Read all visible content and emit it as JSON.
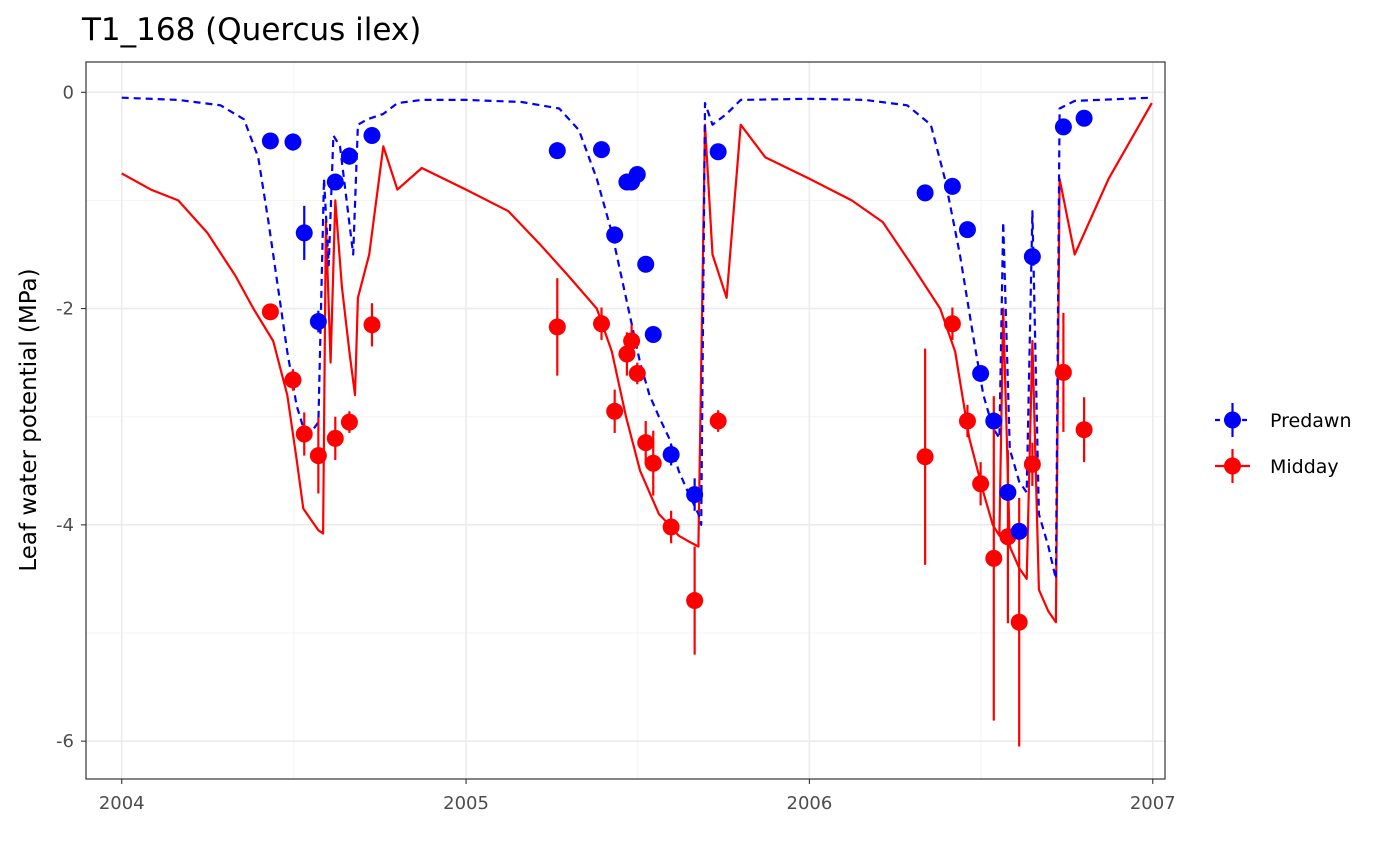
{
  "chart_data": {
    "type": "line",
    "title": "T1_168 (Quercus ilex)",
    "xlabel": "",
    "ylabel": "Leaf water potential (MPa)",
    "xlim": [
      "2003-11-24",
      "2007-01-14"
    ],
    "ylim": [
      -6.35,
      0.28
    ],
    "x_ticks": [
      "2004-01-01",
      "2005-01-01",
      "2006-01-01",
      "2007-01-01"
    ],
    "x_tick_labels": [
      "2004",
      "2005",
      "2006",
      "2007"
    ],
    "y_ticks": [
      0,
      -2,
      -4,
      -6
    ],
    "y_tick_labels": [
      "0",
      "-2",
      "-4",
      "-6"
    ],
    "grid": true,
    "legend_position": "right",
    "series": [
      {
        "name": "Predawn",
        "color": "#0000FF",
        "line_style": "dashed",
        "simulated": [
          [
            "2004-01-01",
            -0.05
          ],
          [
            "2004-03-01",
            -0.07
          ],
          [
            "2004-04-15",
            -0.12
          ],
          [
            "2004-05-10",
            -0.25
          ],
          [
            "2004-05-25",
            -0.6
          ],
          [
            "2004-06-05",
            -1.2
          ],
          [
            "2004-06-15",
            -1.8
          ],
          [
            "2004-06-25",
            -2.4
          ],
          [
            "2004-07-05",
            -2.9
          ],
          [
            "2004-07-12",
            -3.1
          ],
          [
            "2004-07-20",
            -3.15
          ],
          [
            "2004-07-28",
            -3.05
          ],
          [
            "2004-08-03",
            -0.8
          ],
          [
            "2004-08-08",
            -1.6
          ],
          [
            "2004-08-13",
            -0.4
          ],
          [
            "2004-08-20",
            -0.5
          ],
          [
            "2004-08-27",
            -1.0
          ],
          [
            "2004-09-03",
            -1.5
          ],
          [
            "2004-09-08",
            -0.3
          ],
          [
            "2004-09-18",
            -0.25
          ],
          [
            "2004-10-05",
            -0.2
          ],
          [
            "2004-10-20",
            -0.1
          ],
          [
            "2004-11-15",
            -0.07
          ],
          [
            "2005-01-01",
            -0.07
          ],
          [
            "2005-03-01",
            -0.09
          ],
          [
            "2005-04-10",
            -0.15
          ],
          [
            "2005-05-01",
            -0.35
          ],
          [
            "2005-05-20",
            -0.8
          ],
          [
            "2005-06-05",
            -1.3
          ],
          [
            "2005-06-20",
            -1.9
          ],
          [
            "2005-07-05",
            -2.5
          ],
          [
            "2005-07-15",
            -2.8
          ],
          [
            "2005-07-25",
            -3.0
          ],
          [
            "2005-08-05",
            -3.2
          ],
          [
            "2005-08-15",
            -3.5
          ],
          [
            "2005-08-25",
            -3.7
          ],
          [
            "2005-09-05",
            -3.9
          ],
          [
            "2005-09-08",
            -4.0
          ],
          [
            "2005-09-12",
            -0.1
          ],
          [
            "2005-09-20",
            -0.3
          ],
          [
            "2005-10-05",
            -0.2
          ],
          [
            "2005-10-20",
            -0.07
          ],
          [
            "2006-01-01",
            -0.06
          ],
          [
            "2006-03-01",
            -0.07
          ],
          [
            "2006-04-15",
            -0.12
          ],
          [
            "2006-05-10",
            -0.3
          ],
          [
            "2006-05-25",
            -0.8
          ],
          [
            "2006-06-10",
            -1.5
          ],
          [
            "2006-06-25",
            -2.3
          ],
          [
            "2006-07-05",
            -2.8
          ],
          [
            "2006-07-15",
            -3.1
          ],
          [
            "2006-07-22",
            -3.2
          ],
          [
            "2006-07-26",
            -1.2
          ],
          [
            "2006-08-02",
            -3.3
          ],
          [
            "2006-08-12",
            -3.6
          ],
          [
            "2006-08-20",
            -3.7
          ],
          [
            "2006-08-26",
            -1.1
          ],
          [
            "2006-09-02",
            -3.9
          ],
          [
            "2006-09-12",
            -4.2
          ],
          [
            "2006-09-20",
            -4.5
          ],
          [
            "2006-09-24",
            -0.15
          ],
          [
            "2006-10-10",
            -0.08
          ],
          [
            "2006-12-31",
            -0.05
          ]
        ],
        "observations": [
          [
            "2004-06-07",
            -0.45,
            0.05
          ],
          [
            "2004-07-01",
            -0.46,
            0.08
          ],
          [
            "2004-07-13",
            -1.3,
            0.25
          ],
          [
            "2004-07-28",
            -2.12,
            0.1
          ],
          [
            "2004-08-15",
            -0.83,
            0.06
          ],
          [
            "2004-08-30",
            -0.59,
            0.08
          ],
          [
            "2004-09-23",
            -0.4,
            0.05
          ],
          [
            "2005-04-08",
            -0.54,
            0.05
          ],
          [
            "2005-05-25",
            -0.53,
            0.05
          ],
          [
            "2005-06-08",
            -1.32,
            0.08
          ],
          [
            "2005-06-21",
            -0.83,
            0.05
          ],
          [
            "2005-06-26",
            -0.83,
            0.05
          ],
          [
            "2005-07-02",
            -0.76,
            0.05
          ],
          [
            "2005-07-11",
            -1.59,
            0.05
          ],
          [
            "2005-07-19",
            -2.24,
            0.06
          ],
          [
            "2005-08-07",
            -3.35,
            0.1
          ],
          [
            "2005-09-01",
            -3.72,
            0.15
          ],
          [
            "2005-09-26",
            -0.55,
            0.05
          ],
          [
            "2006-05-04",
            -0.93,
            0.05
          ],
          [
            "2006-06-02",
            -0.87,
            0.05
          ],
          [
            "2006-06-18",
            -1.27,
            0.05
          ],
          [
            "2006-07-02",
            -2.6,
            0.06
          ],
          [
            "2006-07-16",
            -3.04,
            0.07
          ],
          [
            "2006-07-31",
            -3.7,
            0.08
          ],
          [
            "2006-08-12",
            -4.06,
            0.07
          ],
          [
            "2006-08-26",
            -1.52,
            0.05
          ],
          [
            "2006-09-28",
            -0.32,
            0.05
          ],
          [
            "2006-10-20",
            -0.24,
            0.05
          ]
        ]
      },
      {
        "name": "Midday",
        "color": "#FF0000",
        "line_style": "solid",
        "simulated": [
          [
            "2004-01-01",
            -0.75
          ],
          [
            "2004-02-01",
            -0.9
          ],
          [
            "2004-03-01",
            -1.0
          ],
          [
            "2004-04-01",
            -1.3
          ],
          [
            "2004-05-01",
            -1.7
          ],
          [
            "2004-05-20",
            -2.0
          ],
          [
            "2004-06-10",
            -2.3
          ],
          [
            "2004-06-25",
            -2.8
          ],
          [
            "2004-07-05",
            -3.4
          ],
          [
            "2004-07-12",
            -3.85
          ],
          [
            "2004-07-20",
            -3.95
          ],
          [
            "2004-07-28",
            -4.05
          ],
          [
            "2004-08-02",
            -4.08
          ],
          [
            "2004-08-05",
            -1.2
          ],
          [
            "2004-08-10",
            -2.5
          ],
          [
            "2004-08-15",
            -1.0
          ],
          [
            "2004-08-22",
            -1.8
          ],
          [
            "2004-08-30",
            -2.4
          ],
          [
            "2004-09-05",
            -2.8
          ],
          [
            "2004-09-08",
            -1.9
          ],
          [
            "2004-09-20",
            -1.5
          ],
          [
            "2004-10-05",
            -0.5
          ],
          [
            "2004-10-20",
            -0.9
          ],
          [
            "2004-11-15",
            -0.7
          ],
          [
            "2005-01-01",
            -0.9
          ],
          [
            "2005-02-15",
            -1.1
          ],
          [
            "2005-03-20",
            -1.4
          ],
          [
            "2005-04-20",
            -1.7
          ],
          [
            "2005-05-20",
            -2.0
          ],
          [
            "2005-06-05",
            -2.4
          ],
          [
            "2005-06-20",
            -3.0
          ],
          [
            "2005-07-05",
            -3.5
          ],
          [
            "2005-07-15",
            -3.7
          ],
          [
            "2005-07-25",
            -3.9
          ],
          [
            "2005-08-05",
            -4.0
          ],
          [
            "2005-08-15",
            -4.1
          ],
          [
            "2005-08-25",
            -4.15
          ],
          [
            "2005-09-05",
            -4.2
          ],
          [
            "2005-09-12",
            -0.3
          ],
          [
            "2005-09-20",
            -1.5
          ],
          [
            "2005-10-05",
            -1.9
          ],
          [
            "2005-10-20",
            -0.3
          ],
          [
            "2005-11-15",
            -0.6
          ],
          [
            "2006-01-01",
            -0.8
          ],
          [
            "2006-02-15",
            -1.0
          ],
          [
            "2006-03-20",
            -1.2
          ],
          [
            "2006-04-20",
            -1.6
          ],
          [
            "2006-05-20",
            -2.0
          ],
          [
            "2006-06-05",
            -2.4
          ],
          [
            "2006-06-20",
            -3.2
          ],
          [
            "2006-07-05",
            -3.7
          ],
          [
            "2006-07-15",
            -4.0
          ],
          [
            "2006-07-22",
            -4.1
          ],
          [
            "2006-07-26",
            -2.0
          ],
          [
            "2006-08-02",
            -4.2
          ],
          [
            "2006-08-12",
            -4.4
          ],
          [
            "2006-08-20",
            -4.5
          ],
          [
            "2006-08-26",
            -2.3
          ],
          [
            "2006-09-02",
            -4.6
          ],
          [
            "2006-09-12",
            -4.8
          ],
          [
            "2006-09-20",
            -4.9
          ],
          [
            "2006-09-24",
            -0.8
          ],
          [
            "2006-10-10",
            -1.5
          ],
          [
            "2006-11-15",
            -0.8
          ],
          [
            "2006-12-31",
            -0.1
          ]
        ],
        "observations": [
          [
            "2004-06-07",
            -2.03,
            0.05
          ],
          [
            "2004-07-01",
            -2.66,
            0.1
          ],
          [
            "2004-07-13",
            -3.16,
            0.2
          ],
          [
            "2004-07-28",
            -3.36,
            0.35
          ],
          [
            "2004-08-15",
            -3.2,
            0.2
          ],
          [
            "2004-08-30",
            -3.05,
            0.1
          ],
          [
            "2004-09-23",
            -2.15,
            0.2
          ],
          [
            "2005-04-08",
            -2.17,
            0.45
          ],
          [
            "2005-05-25",
            -2.14,
            0.15
          ],
          [
            "2005-06-08",
            -2.95,
            0.2
          ],
          [
            "2005-06-21",
            -2.42,
            0.2
          ],
          [
            "2005-06-26",
            -2.3,
            0.15
          ],
          [
            "2005-07-02",
            -2.6,
            0.1
          ],
          [
            "2005-07-11",
            -3.24,
            0.2
          ],
          [
            "2005-07-19",
            -3.43,
            0.3
          ],
          [
            "2005-08-07",
            -4.02,
            0.15
          ],
          [
            "2005-09-01",
            -4.7,
            0.5
          ],
          [
            "2005-09-26",
            -3.04,
            0.1
          ],
          [
            "2006-05-04",
            -3.37,
            1.0
          ],
          [
            "2006-06-02",
            -2.14,
            0.15
          ],
          [
            "2006-06-18",
            -3.04,
            0.15
          ],
          [
            "2006-07-02",
            -3.62,
            0.2
          ],
          [
            "2006-07-16",
            -4.31,
            1.5
          ],
          [
            "2006-07-31",
            -4.11,
            0.8
          ],
          [
            "2006-08-12",
            -4.9,
            1.15
          ],
          [
            "2006-08-26",
            -3.44,
            0.2
          ],
          [
            "2006-09-28",
            -2.59,
            0.55
          ],
          [
            "2006-10-20",
            -3.12,
            0.3
          ]
        ]
      }
    ]
  }
}
